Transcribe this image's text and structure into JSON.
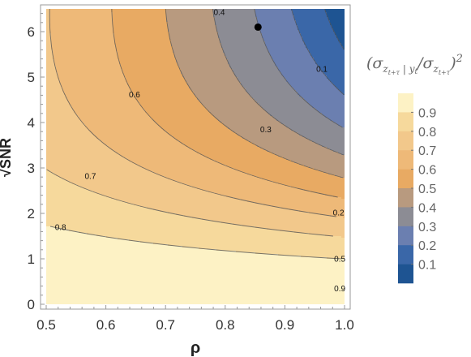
{
  "chart_data": {
    "type": "contour",
    "function": "(sigma_{z_{t+tau}|y_t} / sigma_{z_{t+tau}})^2 as a function of rho and sqrt(SNR)",
    "xlabel": "ρ",
    "ylabel": "√SNR",
    "xlim": [
      0.5,
      1.0
    ],
    "ylim": [
      0,
      6.5
    ],
    "x_ticks": [
      0.5,
      0.6,
      0.7,
      0.8,
      0.9,
      1.0
    ],
    "x_tick_labels": [
      "0.5",
      "0.6",
      "0.7",
      "0.8",
      "0.9",
      "1.0"
    ],
    "y_ticks": [
      0,
      1,
      2,
      3,
      4,
      5,
      6
    ],
    "y_tick_labels": [
      "0",
      "1",
      "2",
      "3",
      "4",
      "5",
      "6"
    ],
    "contour_levels": [
      0.1,
      0.2,
      0.3,
      0.4,
      0.5,
      0.6,
      0.7,
      0.8,
      0.9
    ],
    "contour_labels": [
      {
        "text": "0.4",
        "x": 0.79,
        "y": 6.43
      },
      {
        "text": "0.1",
        "x": 0.962,
        "y": 5.18
      },
      {
        "text": "0.6",
        "x": 0.648,
        "y": 4.62
      },
      {
        "text": "0.3",
        "x": 0.868,
        "y": 3.85
      },
      {
        "text": "0.7",
        "x": 0.574,
        "y": 2.82
      },
      {
        "text": "0.2",
        "x": 0.99,
        "y": 2.02
      },
      {
        "text": "0.8",
        "x": 0.524,
        "y": 1.7
      },
      {
        "text": "0.5",
        "x": 0.992,
        "y": 1.0
      },
      {
        "text": "0.9",
        "x": 0.992,
        "y": 0.35
      }
    ],
    "marker": {
      "x": 0.855,
      "y": 6.1
    },
    "legend": {
      "title_parts": {
        "open": "(σ",
        "sub_num": "z",
        "sub_num_sub": "t+τ",
        "sub_sep": " | y",
        "sub_y": "t",
        "slash": "/σ",
        "sub_den": "z",
        "sub_den_sub": "t+τ",
        "close": ")",
        "power": "2"
      },
      "entries": [
        "0.9",
        "0.8",
        "0.7",
        "0.6",
        "0.5",
        "0.4",
        "0.3",
        "0.2",
        "0.1"
      ],
      "colors": [
        "#fdf2c5",
        "#f6d99c",
        "#f2c88b",
        "#eeb978",
        "#e8aa63",
        "#b89a7f",
        "#8c8c94",
        "#6b7fb0",
        "#3a67a8",
        "#1e5492"
      ]
    },
    "grid": false
  }
}
